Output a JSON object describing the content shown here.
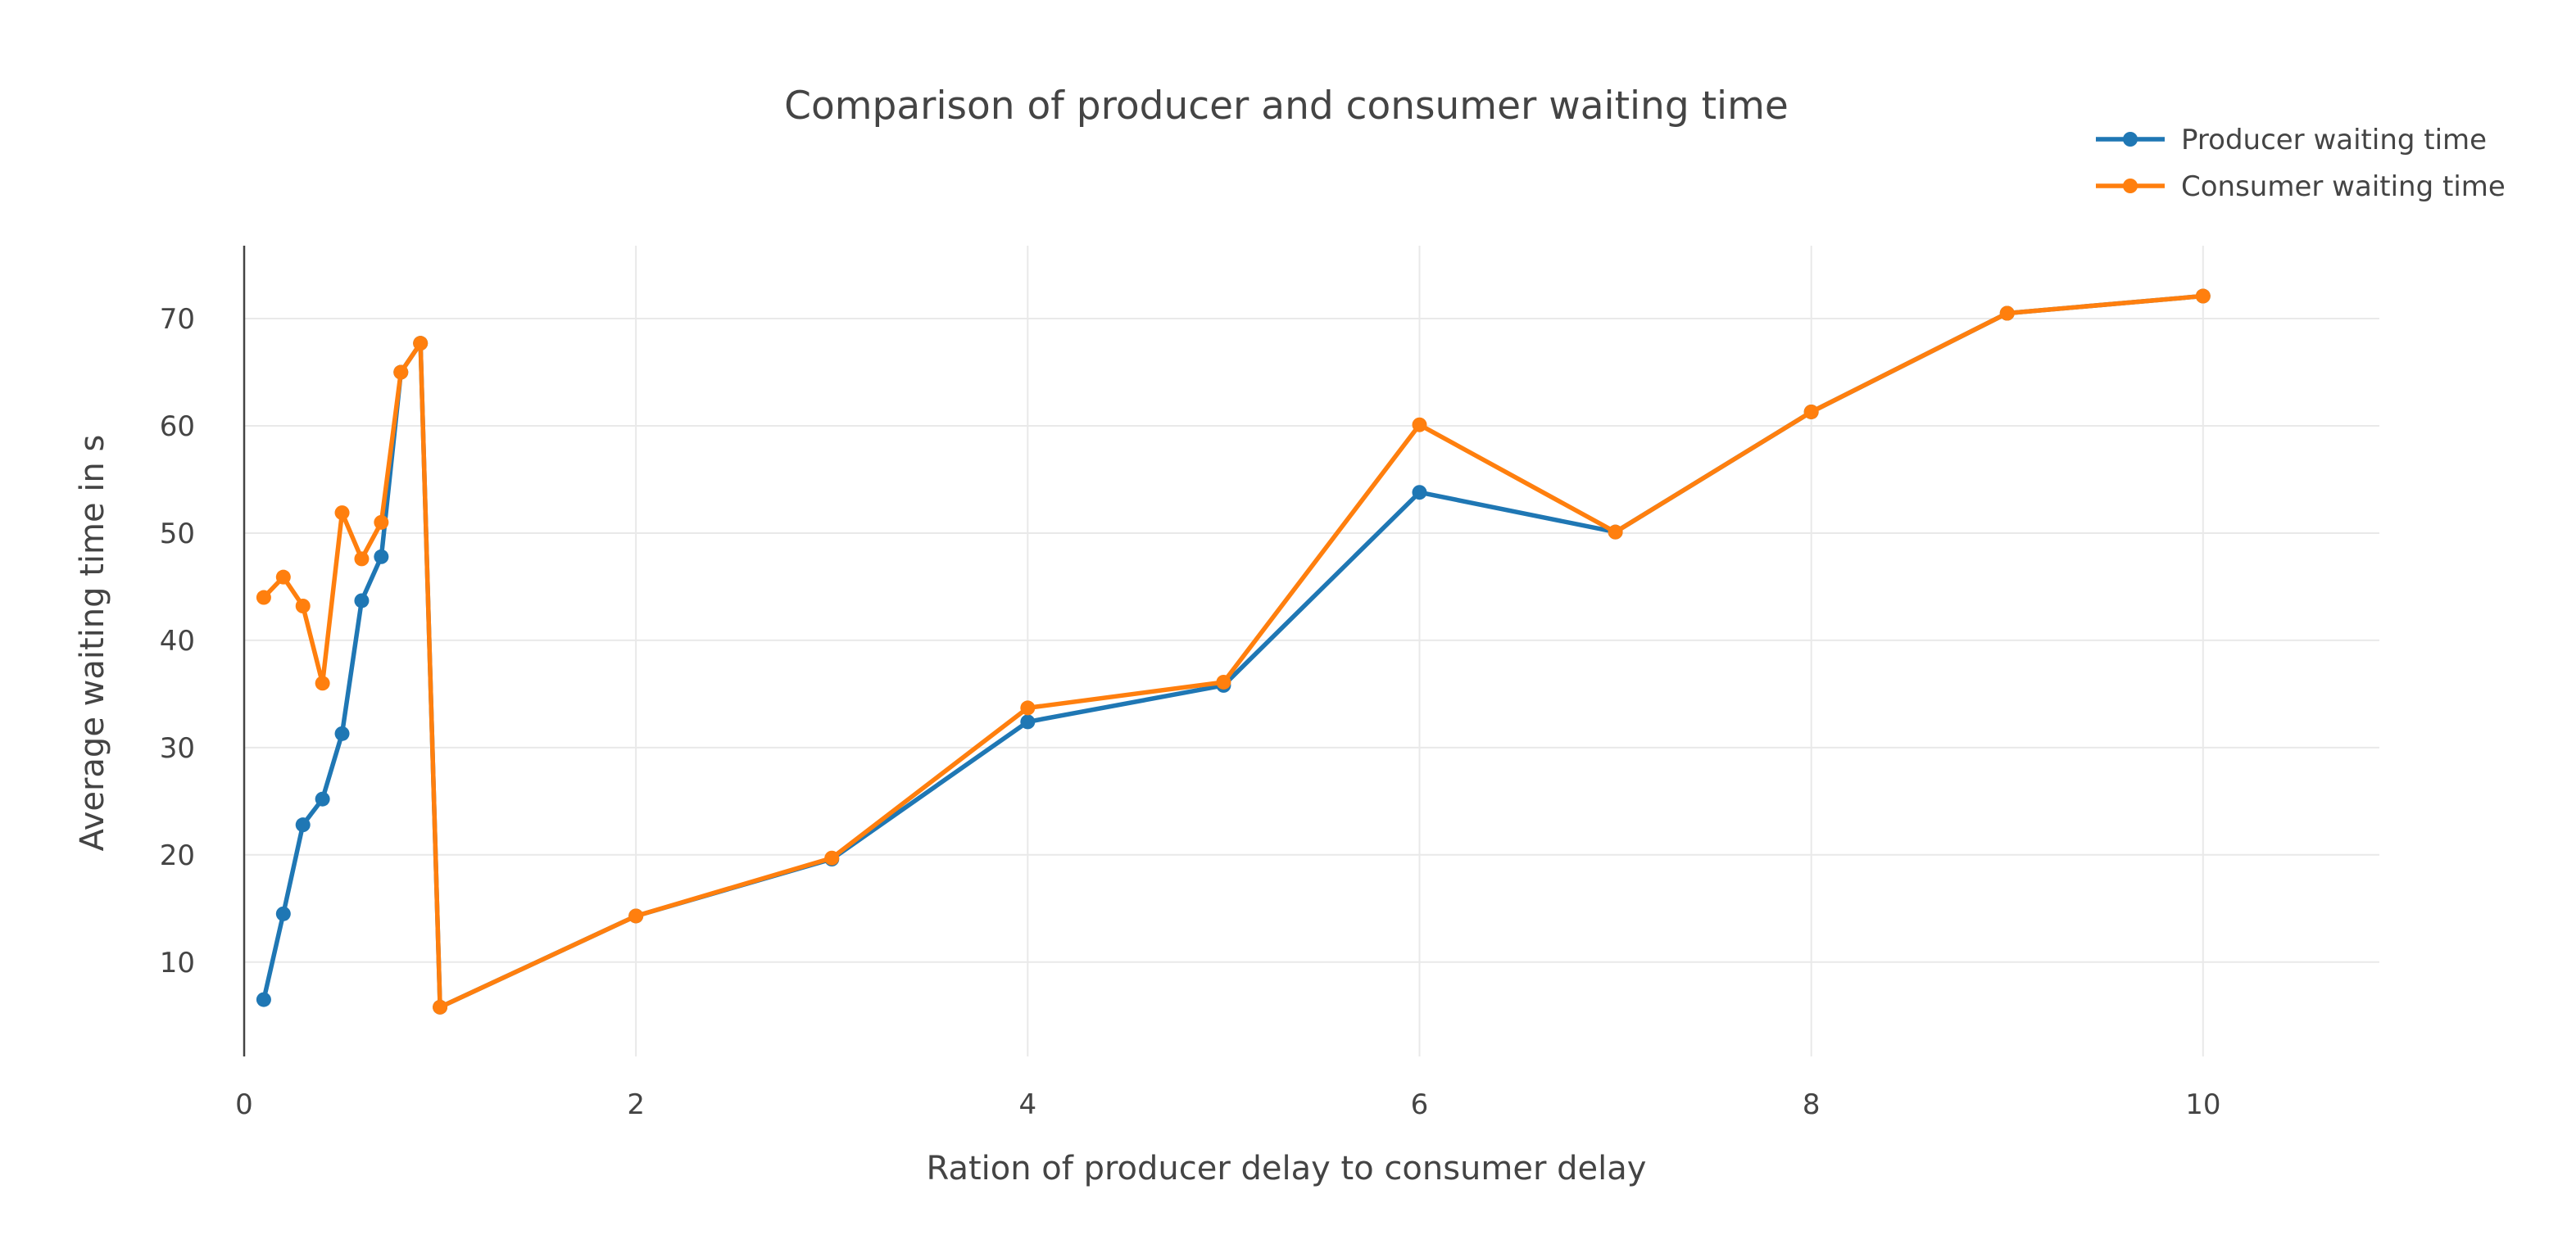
{
  "chart_data": {
    "type": "line",
    "title": "Comparison of producer and consumer waiting time",
    "xlabel": "Ration of producer delay to consumer delay",
    "ylabel": "Average waiting time in s",
    "xlim": [
      0,
      10.9
    ],
    "ylim": [
      1.2,
      76.8
    ],
    "x_ticks": [
      0,
      2,
      4,
      6,
      8,
      10
    ],
    "y_ticks": [
      10,
      20,
      30,
      40,
      50,
      60,
      70
    ],
    "grid": true,
    "legend_position": "top-right",
    "series": [
      {
        "name": "Producer waiting time",
        "color": "#1f77b4",
        "x": [
          0.1,
          0.2,
          0.3,
          0.4,
          0.5,
          0.6,
          0.7,
          0.8,
          0.9,
          1,
          2,
          3,
          4,
          5,
          6,
          7,
          8,
          9,
          10
        ],
        "y": [
          6.5,
          14.5,
          22.8,
          25.2,
          31.3,
          43.7,
          47.8,
          65.0,
          67.7,
          5.8,
          14.3,
          19.6,
          32.4,
          35.8,
          53.8,
          50.1,
          61.3,
          70.5,
          72.1
        ]
      },
      {
        "name": "Consumer waiting time",
        "color": "#ff7f0e",
        "x": [
          0.1,
          0.2,
          0.3,
          0.4,
          0.5,
          0.6,
          0.7,
          0.8,
          0.9,
          1,
          2,
          3,
          4,
          5,
          6,
          7,
          8,
          9,
          10
        ],
        "y": [
          44.0,
          45.9,
          43.2,
          36.0,
          51.9,
          47.6,
          51.0,
          65.0,
          67.7,
          5.8,
          14.3,
          19.7,
          33.7,
          36.1,
          60.1,
          50.1,
          61.3,
          70.5,
          72.1
        ]
      }
    ]
  }
}
